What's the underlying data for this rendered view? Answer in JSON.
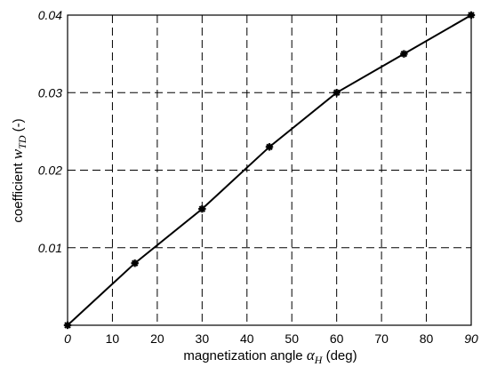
{
  "chart_data": {
    "type": "line",
    "x": [
      0,
      15,
      30,
      45,
      60,
      75,
      90
    ],
    "series": [
      {
        "values": [
          0.0,
          0.008,
          0.015,
          0.023,
          0.03,
          0.035,
          0.04
        ]
      }
    ],
    "xlim": [
      0,
      90
    ],
    "ylim": [
      0,
      0.04
    ],
    "xticks": [
      0,
      10,
      20,
      30,
      40,
      50,
      60,
      70,
      80,
      90
    ],
    "xtick_labels": [
      "0",
      "10",
      "20",
      "30",
      "40",
      "50",
      "60",
      "70",
      "80",
      "90"
    ],
    "xtick_italic": [
      true,
      false,
      false,
      false,
      false,
      false,
      false,
      false,
      false,
      true
    ],
    "yticks": [
      0.01,
      0.02,
      0.03,
      0.04
    ],
    "ytick_labels": [
      "0.01",
      "0.02",
      "0.03",
      "0.04"
    ],
    "xlabel": {
      "text": "magnetization angle ",
      "symbol": "α",
      "subscript": "H",
      "unit": " (deg)"
    },
    "ylabel": {
      "text": "coefficient ",
      "symbol": "w",
      "subscript": "TD",
      "unit": "  (-)"
    },
    "grid": true,
    "grid_style": "dashed",
    "marker": "asterisk",
    "line_color": "#000000"
  }
}
